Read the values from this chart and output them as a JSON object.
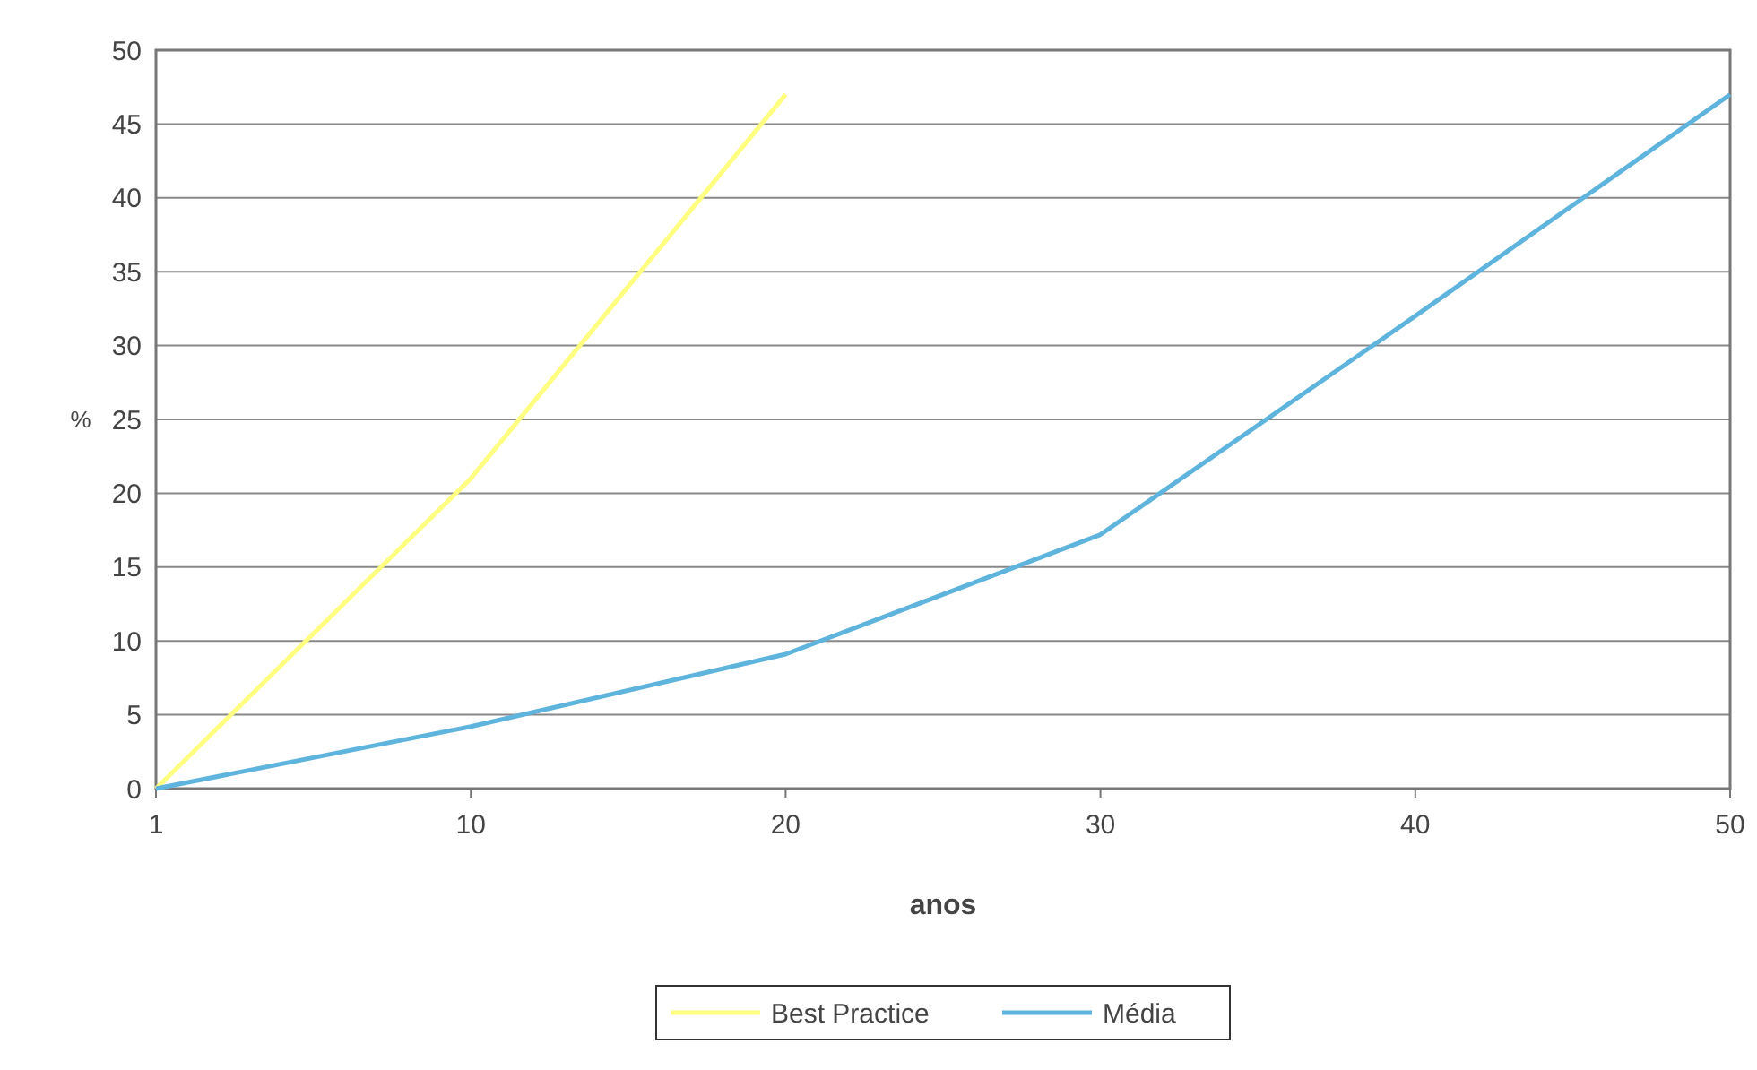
{
  "chart_data": {
    "type": "line",
    "xlabel": "anos",
    "ylabel": "%",
    "categories": [
      "1",
      "10",
      "20",
      "30",
      "40",
      "50"
    ],
    "series": [
      {
        "name": "Best Practice",
        "color": "#ffff80",
        "values": [
          0,
          21,
          47,
          null,
          null,
          null
        ]
      },
      {
        "name": "Média",
        "color": "#5fb4de",
        "values": [
          0,
          4.2,
          9.1,
          17.2,
          32,
          47
        ]
      }
    ],
    "ylim": [
      0,
      50
    ],
    "yticks": [
      0,
      5,
      10,
      15,
      20,
      25,
      30,
      35,
      40,
      45,
      50
    ],
    "grid": "y",
    "legend": "bottom",
    "marker": "none",
    "line_style": "solid"
  }
}
